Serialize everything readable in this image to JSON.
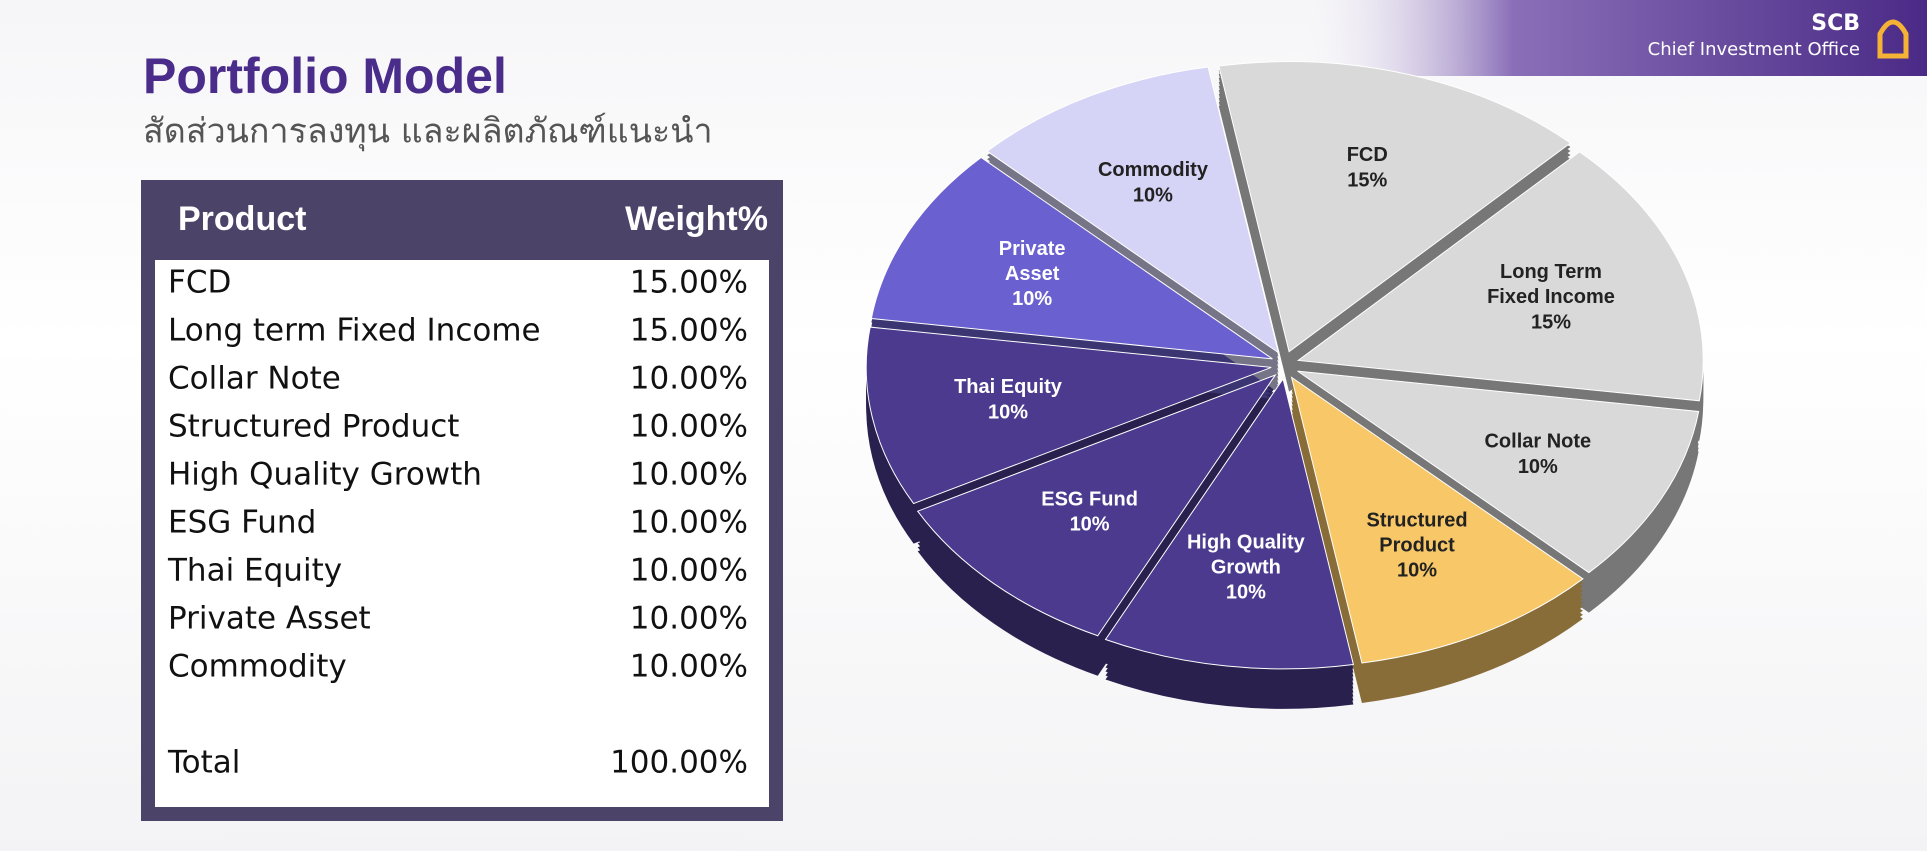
{
  "header": {
    "title": "Portfolio Model",
    "subtitle": "สัดส่วนการลงทุน และผลิตภัณฑ์แนะนำ",
    "brand": "SCB",
    "brand_sub": "Chief Investment Office"
  },
  "table": {
    "columns": [
      "Product",
      "Weight%"
    ],
    "rows": [
      [
        "FCD",
        "15.00%"
      ],
      [
        "Long term Fixed Income",
        "15.00%"
      ],
      [
        "Collar Note",
        "10.00%"
      ],
      [
        "Structured Product",
        "10.00%"
      ],
      [
        "High Quality Growth",
        "10.00%"
      ],
      [
        "ESG Fund",
        "10.00%"
      ],
      [
        "Thai Equity",
        "10.00%"
      ],
      [
        "Private Asset",
        "10.00%"
      ],
      [
        "Commodity",
        "10.00%"
      ]
    ],
    "total": [
      "Total",
      "100.00%"
    ]
  },
  "chart_data": {
    "type": "pie",
    "categories": [
      "FCD",
      "Long Term Fixed Income",
      "Collar Note",
      "Structured Product",
      "High Quality Growth",
      "ESG Fund",
      "Thai Equity",
      "Private Asset",
      "Commodity"
    ],
    "values": [
      15,
      15,
      10,
      10,
      10,
      10,
      10,
      10,
      10
    ],
    "value_labels": [
      "15%",
      "15%",
      "10%",
      "10%",
      "10%",
      "10%",
      "10%",
      "10%",
      "10%"
    ],
    "colors": [
      "#d9d9d9",
      "#d9d9d9",
      "#d9d9d9",
      "#f7c768",
      "#4b3a8e",
      "#4b3a8e",
      "#4b3a8e",
      "#6b60cf",
      "#d6d4f6"
    ]
  }
}
